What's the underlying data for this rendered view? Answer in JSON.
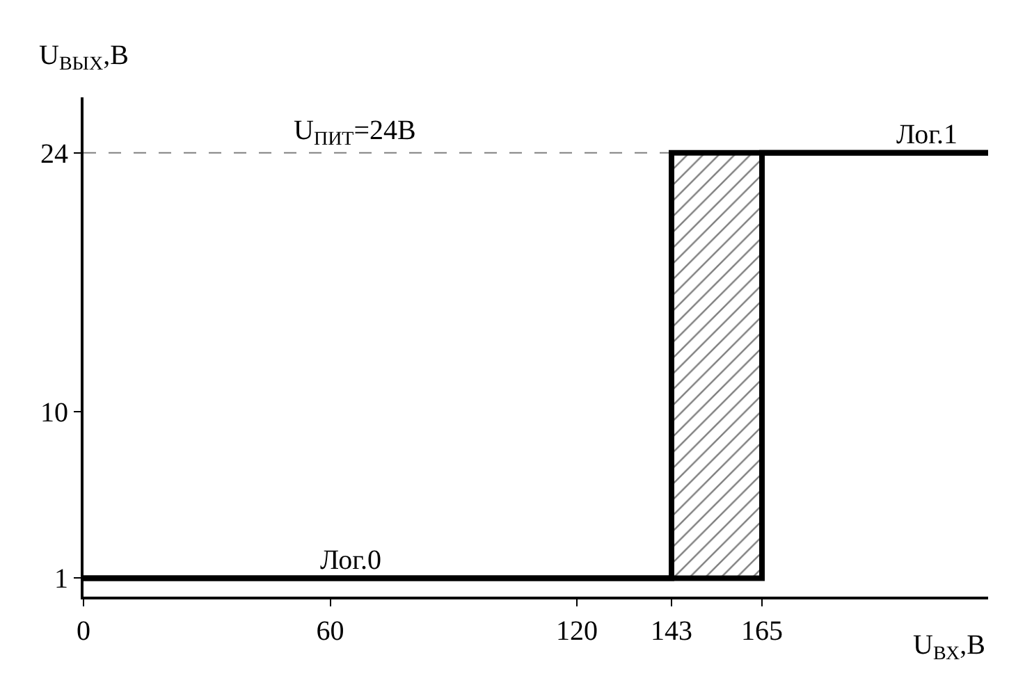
{
  "chart_data": {
    "type": "line",
    "xlabel": "U$_{ВХ}$,В",
    "ylabel": "U$_{ВЫХ}$,В",
    "series": [
      {
        "color": "#000000",
        "x": [
          0,
          165,
          165,
          220
        ],
        "values": [
          1,
          1,
          24,
          24
        ]
      },
      {
        "color": "#000000",
        "x": [
          220,
          143,
          143,
          0
        ],
        "values": [
          24,
          24,
          1,
          1
        ]
      }
    ],
    "xlim": [
      0,
      220
    ],
    "ylim": [
      0,
      27
    ],
    "xticks": [
      0,
      60,
      120,
      143,
      165
    ],
    "yticks": [
      1,
      10,
      24
    ],
    "ref_lines": [
      {
        "axis": "y",
        "value": 24,
        "label": "U$_{ПИТ}$=24В",
        "color": "#808080",
        "line_style": "dashed"
      }
    ],
    "bands": [
      {
        "axis": "x",
        "from": 143,
        "to": 165,
        "color": "#000000"
      }
    ],
    "annotations": [
      {
        "text": "Лог.0",
        "x": 65,
        "y": 1
      },
      {
        "text": "Лог.1",
        "x": 205,
        "y": 24
      }
    ],
    "marker": "none",
    "line_style": "solid"
  }
}
